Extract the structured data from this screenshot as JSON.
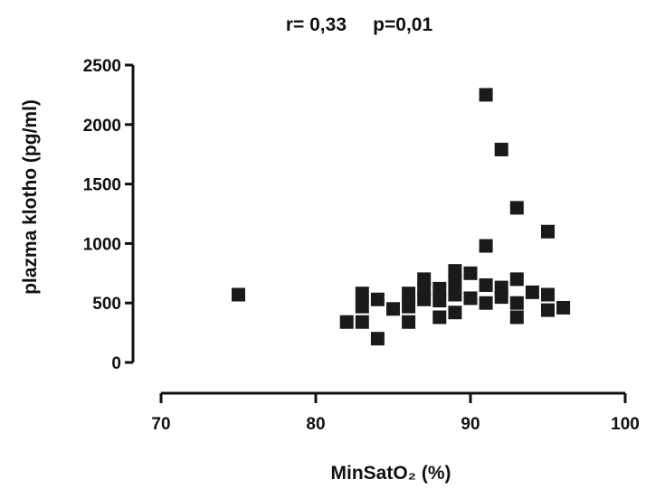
{
  "chart_data": {
    "type": "scatter",
    "title": "r= 0,33     p=0,01",
    "xlabel": "MinSatO₂ (%)",
    "ylabel": "plazma klotho (pg/ml)",
    "xlim": [
      70,
      100
    ],
    "ylim": [
      0,
      2500
    ],
    "xticks": [
      70,
      80,
      90,
      100
    ],
    "yticks": [
      0,
      500,
      1000,
      1500,
      2000,
      2500
    ],
    "grid": false,
    "marker_color": "#1a1a1a",
    "points": [
      {
        "x": 75,
        "y": 570
      },
      {
        "x": 82,
        "y": 340
      },
      {
        "x": 83,
        "y": 340
      },
      {
        "x": 83,
        "y": 470
      },
      {
        "x": 83,
        "y": 580
      },
      {
        "x": 84,
        "y": 200
      },
      {
        "x": 84,
        "y": 530
      },
      {
        "x": 85,
        "y": 450
      },
      {
        "x": 86,
        "y": 340
      },
      {
        "x": 86,
        "y": 470
      },
      {
        "x": 86,
        "y": 580
      },
      {
        "x": 87,
        "y": 530
      },
      {
        "x": 87,
        "y": 620
      },
      {
        "x": 87,
        "y": 700
      },
      {
        "x": 88,
        "y": 380
      },
      {
        "x": 88,
        "y": 520
      },
      {
        "x": 88,
        "y": 620
      },
      {
        "x": 89,
        "y": 420
      },
      {
        "x": 89,
        "y": 570
      },
      {
        "x": 89,
        "y": 680
      },
      {
        "x": 89,
        "y": 770
      },
      {
        "x": 90,
        "y": 540
      },
      {
        "x": 90,
        "y": 750
      },
      {
        "x": 91,
        "y": 500
      },
      {
        "x": 91,
        "y": 650
      },
      {
        "x": 91,
        "y": 980
      },
      {
        "x": 91,
        "y": 2250
      },
      {
        "x": 92,
        "y": 550
      },
      {
        "x": 92,
        "y": 630
      },
      {
        "x": 92,
        "y": 1790
      },
      {
        "x": 93,
        "y": 380
      },
      {
        "x": 93,
        "y": 500
      },
      {
        "x": 93,
        "y": 700
      },
      {
        "x": 93,
        "y": 1300
      },
      {
        "x": 94,
        "y": 590
      },
      {
        "x": 95,
        "y": 440
      },
      {
        "x": 95,
        "y": 570
      },
      {
        "x": 95,
        "y": 1100
      },
      {
        "x": 96,
        "y": 460
      }
    ]
  }
}
